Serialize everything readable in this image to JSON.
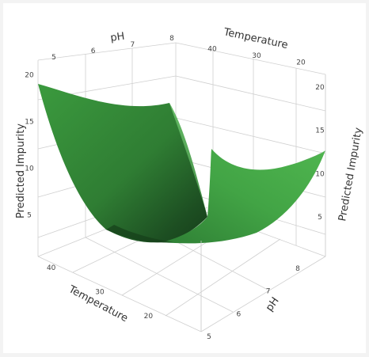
{
  "chart_data": {
    "type": "surface",
    "axes": {
      "x": {
        "label": "Temperature",
        "range": [
          15,
          45
        ],
        "ticks": [
          20,
          30,
          40
        ]
      },
      "y": {
        "label": "pH",
        "range": [
          5,
          8
        ],
        "ticks": [
          5,
          6,
          7,
          8
        ]
      },
      "z": {
        "label": "Predicted Impurity",
        "range": [
          2,
          23
        ],
        "ticks": [
          5,
          10,
          15,
          20
        ]
      }
    },
    "surface_samples": [
      {
        "temperature": 45,
        "ph": 5,
        "impurity": 21.5
      },
      {
        "temperature": 15,
        "ph": 5,
        "impurity": 15.0
      },
      {
        "temperature": 45,
        "ph": 8,
        "impurity": 13.0
      },
      {
        "temperature": 15,
        "ph": 8,
        "impurity": 12.0
      },
      {
        "temperature": 30,
        "ph": 6.5,
        "impurity": 3.5
      }
    ],
    "surface_color": "#3f9a3f",
    "grid": true
  }
}
